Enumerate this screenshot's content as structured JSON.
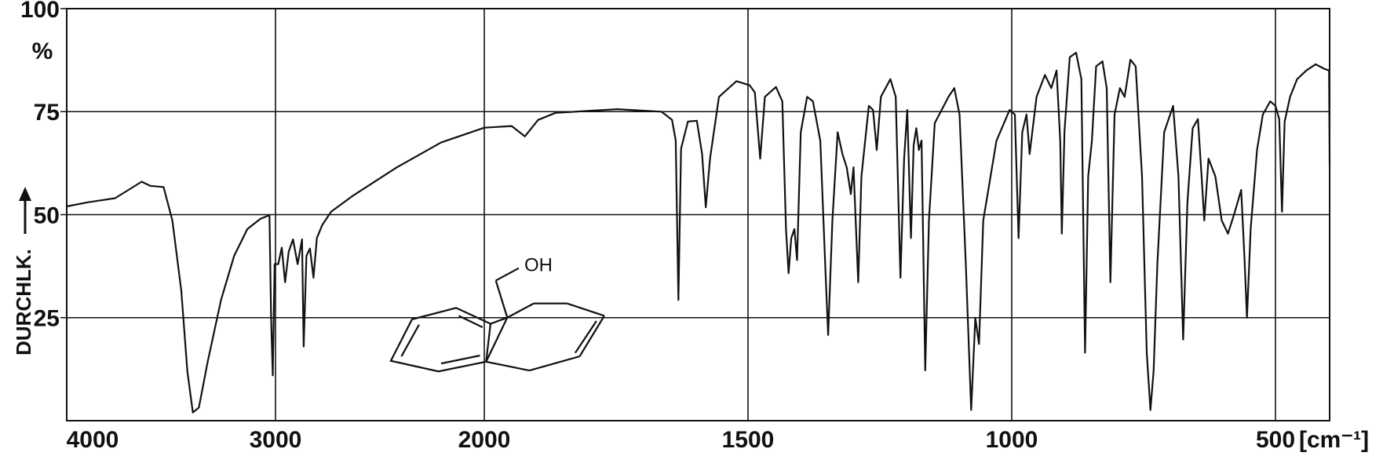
{
  "chart_data": {
    "type": "line",
    "y_label": "DURCHLK.",
    "y_unit": "%",
    "x_unit": "[cm⁻¹]",
    "annotation": "OH",
    "color": "#111111",
    "grid": true,
    "xlim": [
      4000,
      400
    ],
    "xticks": [
      4000,
      3000,
      2000,
      1500,
      1000,
      500
    ],
    "ylim": [
      0,
      100
    ],
    "yticks": [
      25,
      50,
      75,
      100
    ],
    "x": [
      4000,
      3900,
      3768,
      3641,
      3600,
      3536,
      3494,
      3451,
      3422,
      3396,
      3367,
      3325,
      3261,
      3198,
      3135,
      3072,
      3029,
      3021,
      3013,
      3004,
      2987,
      2970,
      2954,
      2937,
      2916,
      2894,
      2873,
      2865,
      2852,
      2835,
      2818,
      2802,
      2776,
      2734,
      2629,
      2418,
      2207,
      2000,
      1948,
      1923,
      1898,
      1865,
      1748,
      1664,
      1644,
      1637,
      1632,
      1627,
      1614,
      1597,
      1587,
      1580,
      1572,
      1555,
      1522,
      1497,
      1487,
      1477,
      1468,
      1447,
      1435,
      1428,
      1423,
      1418,
      1412,
      1407,
      1400,
      1388,
      1377,
      1363,
      1353,
      1348,
      1340,
      1330,
      1321,
      1313,
      1305,
      1300,
      1291,
      1285,
      1271,
      1263,
      1256,
      1248,
      1230,
      1220,
      1211,
      1204,
      1198,
      1191,
      1186,
      1181,
      1176,
      1171,
      1164,
      1157,
      1146,
      1120,
      1109,
      1099,
      1087,
      1077,
      1069,
      1062,
      1054,
      1029,
      1004,
      994,
      987,
      980,
      972,
      966,
      953,
      937,
      925,
      915,
      908,
      905,
      900,
      890,
      878,
      868,
      861,
      855,
      848,
      840,
      828,
      820,
      813,
      805,
      795,
      786,
      775,
      765,
      753,
      744,
      737,
      731,
      724,
      711,
      694,
      684,
      675,
      667,
      657,
      647,
      640,
      635,
      627,
      614,
      602,
      590,
      577,
      565,
      559,
      554,
      547,
      535,
      524,
      510,
      500,
      493,
      488,
      483,
      473,
      460,
      443,
      426,
      410,
      401,
      400
    ],
    "values": [
      52,
      53,
      54,
      58,
      57,
      56.7,
      48.6,
      31.5,
      12,
      2,
      3.2,
      14.3,
      29.3,
      40,
      46.5,
      49,
      49.9,
      25,
      11,
      38,
      38,
      42,
      33.6,
      41,
      44,
      38,
      44,
      18,
      40,
      41.8,
      34.7,
      44.3,
      47.5,
      50.7,
      54.6,
      61.5,
      67.5,
      71.1,
      71.5,
      69,
      73,
      74.7,
      75.6,
      75,
      73,
      68,
      29.3,
      66,
      72.6,
      72.8,
      64.7,
      51.8,
      63.6,
      78.6,
      82.4,
      81.4,
      79.7,
      63.6,
      78.6,
      81,
      77.5,
      46.5,
      35.8,
      44.3,
      46.5,
      39,
      70,
      78.6,
      77.5,
      67.9,
      35.8,
      20.8,
      48.6,
      70,
      64.7,
      61.5,
      55,
      61.5,
      33.6,
      59.3,
      76.4,
      75.4,
      65.7,
      78.6,
      82.9,
      78.6,
      34.7,
      63.6,
      75.4,
      44.3,
      66.8,
      71,
      65.7,
      68,
      12.2,
      48.6,
      72.2,
      78.6,
      80.7,
      74.3,
      37.9,
      2.6,
      25,
      18.6,
      48.6,
      67.9,
      75.4,
      74.3,
      44.3,
      70,
      74.3,
      64.7,
      78.6,
      83.9,
      80.7,
      85,
      67.9,
      45.4,
      70.2,
      88.2,
      89.3,
      82.9,
      16.5,
      59.3,
      67.9,
      86,
      87.2,
      80.7,
      33.6,
      74.3,
      80.7,
      78.6,
      87.6,
      86,
      59.3,
      16.5,
      2.6,
      12.2,
      37.9,
      70,
      76.4,
      59.3,
      19.7,
      52.9,
      71,
      73.2,
      59.3,
      48.6,
      63.6,
      59.3,
      48.6,
      45.4,
      50.7,
      56,
      40,
      25,
      46.5,
      65.7,
      74.3,
      77.5,
      76.4,
      73.2,
      50.7,
      72.6,
      78.6,
      82.9,
      85,
      86.5,
      85.4,
      85,
      62
    ]
  }
}
